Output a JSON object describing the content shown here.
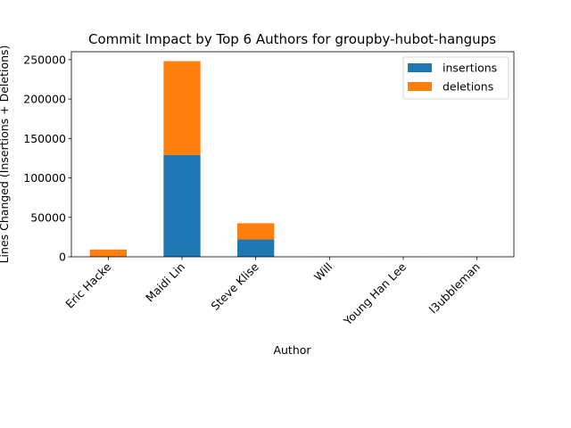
{
  "chart_data": {
    "type": "bar",
    "stacked": true,
    "title": "Commit Impact by Top 6 Authors for groupby-hubot-hangups",
    "xlabel": "Author",
    "ylabel": "Lines Changed (Insertions + Deletions)",
    "categories": [
      "Eric Hacke",
      "Maidi Lin",
      "Steve Klise",
      "Will",
      "Young Han Lee",
      "l3ubbleman"
    ],
    "series": [
      {
        "name": "insertions",
        "color": "#1f77b4",
        "values": [
          400,
          129000,
          22000,
          150,
          100,
          100
        ]
      },
      {
        "name": "deletions",
        "color": "#ff7f0e",
        "values": [
          8800,
          119000,
          20500,
          100,
          100,
          50
        ]
      }
    ],
    "ylim": [
      0,
      260000
    ],
    "yticks": [
      0,
      50000,
      100000,
      150000,
      200000,
      250000
    ],
    "ytick_labels": [
      "0",
      "50000",
      "100000",
      "150000",
      "200000",
      "250000"
    ],
    "legend_position": "top-right",
    "grid": false
  }
}
